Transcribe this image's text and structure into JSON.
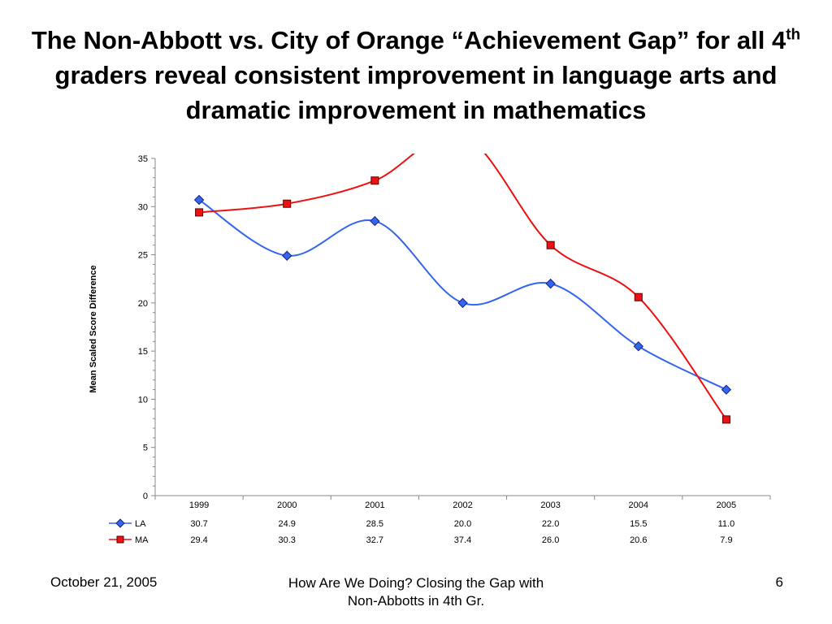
{
  "slide": {
    "title_part1": "The Non-Abbott vs. City of Orange “Achievement Gap” for all 4",
    "title_sup": "th",
    "title_part2": " graders reveal consistent improvement in language arts and dramatic improvement in mathematics",
    "footer_date": "October 21, 2005",
    "footer_center": "How Are We Doing? Closing the Gap with Non-Abbotts in 4th Gr.",
    "page_number": "6"
  },
  "colors": {
    "LA": "#3366ee",
    "MA": "#ee1111"
  },
  "chart_data": {
    "type": "line",
    "title": "",
    "xlabel": "",
    "ylabel": "Mean Scaled Score Difference",
    "categories": [
      "1999",
      "2000",
      "2001",
      "2002",
      "2003",
      "2004",
      "2005"
    ],
    "ylim": [
      0,
      35
    ],
    "yticks": [
      0,
      5,
      10,
      15,
      20,
      25,
      30,
      35
    ],
    "grid": false,
    "legend": "data-table-bottom",
    "series": [
      {
        "name": "LA",
        "values": [
          30.7,
          24.9,
          28.5,
          20.0,
          22.0,
          15.5,
          11.0
        ],
        "labels": [
          "30.7",
          "24.9",
          "28.5",
          "20.0",
          "22.0",
          "15.5",
          "11.0"
        ]
      },
      {
        "name": "MA",
        "values": [
          29.4,
          30.3,
          32.7,
          37.4,
          26.0,
          20.6,
          7.9
        ],
        "labels": [
          "29.4",
          "30.3",
          "32.7",
          "37.4",
          "26.0",
          "20.6",
          "7.9"
        ]
      }
    ]
  }
}
